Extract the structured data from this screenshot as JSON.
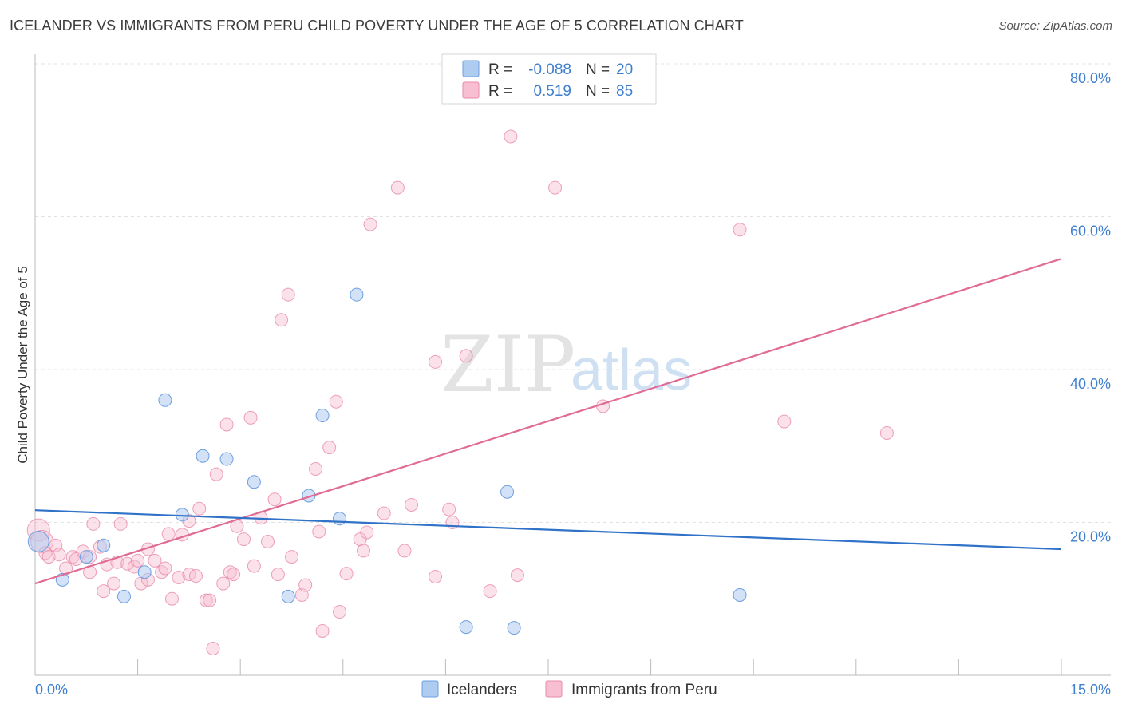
{
  "header": {
    "title": "ICELANDER VS IMMIGRANTS FROM PERU CHILD POVERTY UNDER THE AGE OF 5 CORRELATION CHART",
    "source": "Source: ZipAtlas.com"
  },
  "watermark": {
    "zip": "ZIP",
    "atlas": "atlas"
  },
  "colors": {
    "icelanders_fill": "#aecbf0",
    "icelanders_stroke": "#6e9fe0",
    "icelanders_line": "#2f72c8",
    "peru_fill": "#f7bfd1",
    "peru_stroke": "#e88aa9",
    "peru_line": "#e06b94",
    "tick_label": "#3f7fcf"
  },
  "legend": {
    "rows": [
      {
        "r_label": "R =",
        "r_value": "-0.088",
        "n_label": "N =",
        "n_value": "20"
      },
      {
        "r_label": "R =",
        "r_value": "0.519",
        "n_label": "N =",
        "n_value": "85"
      }
    ]
  },
  "chart_data": {
    "type": "scatter",
    "title": "ICELANDER VS IMMIGRANTS FROM PERU CHILD POVERTY UNDER THE AGE OF 5 CORRELATION CHART",
    "xlabel": "",
    "ylabel": "Child Poverty Under the Age of 5",
    "xlim": [
      0,
      15
    ],
    "ylim": [
      0,
      80
    ],
    "x_tick_labels": [
      "0.0%",
      "15.0%"
    ],
    "y_ticks": [
      20,
      40,
      60,
      80
    ],
    "y_tick_labels": [
      "20.0%",
      "40.0%",
      "60.0%",
      "80.0%"
    ],
    "grid": true,
    "legend_position": "top-center",
    "series": [
      {
        "name": "Icelanders",
        "r": -0.088,
        "n": 20,
        "trend": {
          "x": [
            0,
            15
          ],
          "y": [
            21.6,
            16.5
          ]
        },
        "points": [
          [
            0.05,
            17.5
          ],
          [
            0.4,
            12.5
          ],
          [
            0.75,
            15.5
          ],
          [
            1.0,
            17.0
          ],
          [
            1.3,
            10.3
          ],
          [
            1.6,
            13.5
          ],
          [
            1.9,
            36.0
          ],
          [
            2.15,
            21.0
          ],
          [
            2.45,
            28.7
          ],
          [
            2.8,
            28.3
          ],
          [
            3.2,
            25.3
          ],
          [
            3.7,
            10.3
          ],
          [
            4.0,
            23.5
          ],
          [
            4.2,
            34.0
          ],
          [
            4.45,
            20.5
          ],
          [
            4.7,
            49.8
          ],
          [
            6.3,
            6.3
          ],
          [
            6.9,
            24.0
          ],
          [
            7.0,
            6.2
          ],
          [
            10.3,
            10.5
          ]
        ]
      },
      {
        "name": "Immigrants from Peru",
        "r": 0.519,
        "n": 85,
        "trend": {
          "x": [
            0,
            15
          ],
          "y": [
            12.0,
            54.5
          ]
        },
        "points": [
          [
            0.05,
            19.0
          ],
          [
            0.1,
            17.5
          ],
          [
            0.15,
            16.0
          ],
          [
            0.2,
            15.5
          ],
          [
            0.3,
            17.0
          ],
          [
            0.35,
            15.8
          ],
          [
            0.45,
            14.0
          ],
          [
            0.55,
            15.5
          ],
          [
            0.6,
            15.2
          ],
          [
            0.7,
            16.2
          ],
          [
            0.8,
            15.5
          ],
          [
            0.8,
            13.5
          ],
          [
            0.85,
            19.8
          ],
          [
            0.95,
            16.8
          ],
          [
            1.0,
            11.0
          ],
          [
            1.05,
            14.5
          ],
          [
            1.15,
            12.0
          ],
          [
            1.2,
            14.8
          ],
          [
            1.25,
            19.8
          ],
          [
            1.35,
            14.6
          ],
          [
            1.45,
            14.2
          ],
          [
            1.5,
            15.0
          ],
          [
            1.55,
            12.0
          ],
          [
            1.65,
            12.5
          ],
          [
            1.65,
            16.5
          ],
          [
            1.75,
            15.0
          ],
          [
            1.85,
            13.5
          ],
          [
            1.9,
            14.0
          ],
          [
            1.95,
            18.5
          ],
          [
            2.0,
            10.0
          ],
          [
            2.1,
            12.8
          ],
          [
            2.15,
            18.4
          ],
          [
            2.25,
            13.2
          ],
          [
            2.25,
            20.2
          ],
          [
            2.35,
            13.0
          ],
          [
            2.4,
            21.8
          ],
          [
            2.5,
            9.8
          ],
          [
            2.55,
            9.8
          ],
          [
            2.6,
            3.5
          ],
          [
            2.65,
            26.3
          ],
          [
            2.75,
            12.0
          ],
          [
            2.8,
            32.8
          ],
          [
            2.85,
            13.5
          ],
          [
            2.9,
            13.2
          ],
          [
            2.95,
            19.5
          ],
          [
            3.05,
            17.8
          ],
          [
            3.15,
            33.7
          ],
          [
            3.2,
            14.3
          ],
          [
            3.3,
            20.6
          ],
          [
            3.4,
            17.5
          ],
          [
            3.5,
            23.0
          ],
          [
            3.55,
            13.2
          ],
          [
            3.6,
            46.5
          ],
          [
            3.7,
            49.8
          ],
          [
            3.75,
            15.5
          ],
          [
            3.9,
            10.5
          ],
          [
            3.95,
            11.8
          ],
          [
            4.1,
            27.0
          ],
          [
            4.15,
            18.8
          ],
          [
            4.2,
            5.8
          ],
          [
            4.3,
            29.8
          ],
          [
            4.4,
            35.8
          ],
          [
            4.45,
            8.3
          ],
          [
            4.55,
            13.3
          ],
          [
            4.75,
            17.8
          ],
          [
            4.8,
            16.3
          ],
          [
            4.85,
            18.7
          ],
          [
            4.9,
            59.0
          ],
          [
            5.1,
            21.2
          ],
          [
            5.3,
            63.8
          ],
          [
            5.4,
            16.3
          ],
          [
            5.5,
            22.3
          ],
          [
            5.85,
            41.0
          ],
          [
            5.85,
            12.9
          ],
          [
            6.05,
            21.7
          ],
          [
            6.1,
            20.0
          ],
          [
            6.3,
            41.8
          ],
          [
            6.65,
            11.0
          ],
          [
            6.95,
            70.5
          ],
          [
            7.05,
            13.1
          ],
          [
            7.6,
            63.8
          ],
          [
            8.3,
            35.2
          ],
          [
            10.3,
            58.3
          ],
          [
            10.95,
            33.2
          ],
          [
            12.45,
            31.7
          ]
        ]
      }
    ]
  },
  "bottom_legend": {
    "items": [
      {
        "label": "Icelanders"
      },
      {
        "label": "Immigrants from Peru"
      }
    ]
  }
}
